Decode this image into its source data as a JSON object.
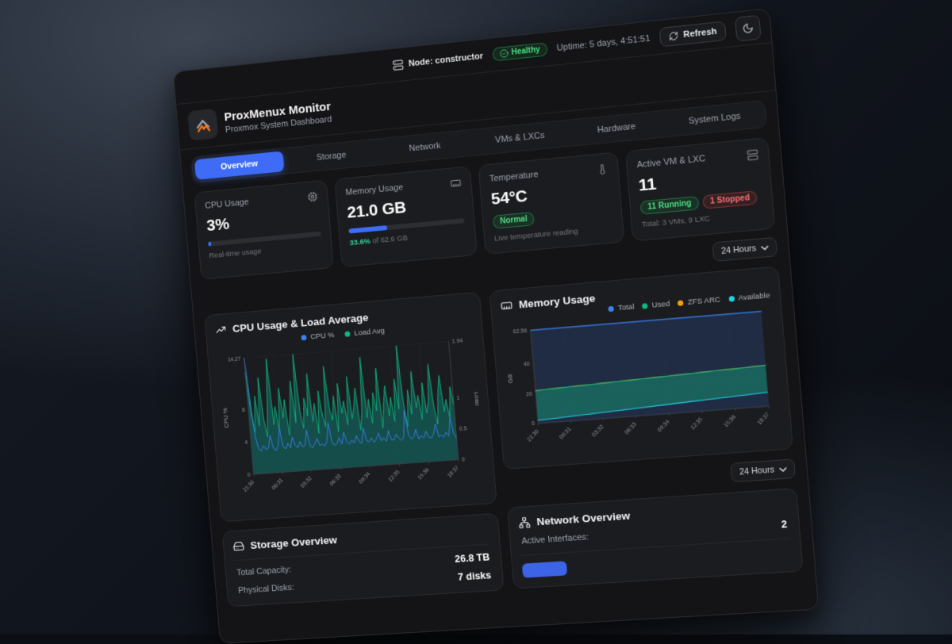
{
  "theme": {
    "accent": "#3e6cf6",
    "green": "#4ade80",
    "red": "#f87171",
    "chart_blue": "#3b82f6",
    "chart_green": "#10b981",
    "orange": "#f59e0b",
    "cyan": "#22d3ee"
  },
  "topbar": {
    "node_label": "Node: constructor",
    "health": "Healthy",
    "uptime": "Uptime: 5 days, 4:51:51",
    "refresh_label": "Refresh"
  },
  "header": {
    "title": "ProxMenux Monitor",
    "subtitle": "Proxmox System Dashboard"
  },
  "tabs": [
    {
      "label": "Overview",
      "active": true
    },
    {
      "label": "Storage",
      "active": false
    },
    {
      "label": "Network",
      "active": false
    },
    {
      "label": "VMs & LXCs",
      "active": false
    },
    {
      "label": "Hardware",
      "active": false
    },
    {
      "label": "System Logs",
      "active": false
    }
  ],
  "stats": {
    "cpu": {
      "title": "CPU Usage",
      "value": "3%",
      "percent": 3,
      "footnote": "Real-time usage"
    },
    "memory": {
      "title": "Memory Usage",
      "value": "21.0 GB",
      "percent": 33.6,
      "used_pct": "33.6%",
      "of_text": "of 62.6 GB"
    },
    "temperature": {
      "title": "Temperature",
      "value": "54°C",
      "badge": "Normal",
      "footnote": "Live temperature reading"
    },
    "vm": {
      "title": "Active VM & LXC",
      "value": "11",
      "running_badge": "11 Running",
      "stopped_badge": "1 Stopped",
      "footnote": "Total: 3 VMs, 9 LXC"
    }
  },
  "time_range": {
    "label": "24 Hours"
  },
  "time_range2": {
    "label": "24 Hours"
  },
  "storage": {
    "title": "Storage Overview",
    "rows": [
      {
        "label": "Total Capacity:",
        "value": "26.8 TB"
      },
      {
        "label": "Physical Disks:",
        "value": "7 disks"
      }
    ]
  },
  "network": {
    "title": "Network Overview",
    "rows": [
      {
        "label": "Active Interfaces:",
        "value": "2"
      }
    ],
    "badge_color": "#3d63e7"
  },
  "chart_data": [
    {
      "type": "line",
      "title": "CPU Usage & Load Average",
      "x_ticks": [
        "21:30",
        "00:31",
        "03:32",
        "06:33",
        "09:34",
        "12:35",
        "15:36",
        "18:37"
      ],
      "y_left": {
        "label": "CPU %",
        "ticks": [
          0,
          4,
          8,
          14.27
        ],
        "max": 14.27
      },
      "y_right": {
        "label": "Load",
        "ticks": [
          0,
          0.5,
          1,
          1.94
        ],
        "max": 1.94
      },
      "grid": true,
      "legend_position": "top",
      "legend": [
        {
          "label": "CPU %",
          "color": "#3b82f6"
        },
        {
          "label": "Load Avg",
          "color": "#10b981"
        }
      ],
      "series": [
        {
          "name": "Load Avg",
          "color": "#10b981",
          "axis": "right",
          "width": 1,
          "fill": "rgba(15,118,110,0.55)",
          "fill_to": "baseline",
          "values": [
            1.7,
            1.0,
            0.7,
            1.3,
            0.8,
            1.6,
            0.9,
            0.6,
            1.2,
            1.9,
            0.8,
            1.1,
            0.7,
            1.4,
            0.9,
            1.2,
            0.6,
            1.0,
            1.5,
            0.8,
            1.94,
            1.0,
            0.7,
            1.2,
            0.9,
            1.6,
            0.8,
            1.1,
            0.6,
            1.3,
            0.9,
            0.7,
            1.7,
            1.0,
            0.8,
            1.2,
            0.6,
            1.4,
            0.9,
            1.1,
            0.7,
            1.5,
            0.8,
            1.0,
            1.3,
            0.6,
            0.9,
            1.8,
            0.8,
            1.1,
            0.7,
            1.2,
            0.9,
            1.6,
            0.6,
            1.0,
            1.3,
            0.8,
            1.1,
            0.7,
            1.4,
            0.9,
            1.94,
            1.0,
            0.6,
            1.2,
            0.8,
            1.5,
            0.9,
            1.1,
            0.7,
            1.3,
            0.8,
            1.0,
            1.6,
            0.9,
            0.6,
            1.1,
            1.4,
            0.8,
            1.0,
            0.7,
            1.2,
            0.9
          ]
        },
        {
          "name": "CPU %",
          "color": "#3b82f6",
          "axis": "left",
          "width": 1,
          "values": [
            14.27,
            9,
            4.5,
            3,
            2.8,
            3.4,
            2.9,
            3.1,
            4.6,
            3,
            2.7,
            3.3,
            5.4,
            3.1,
            2.8,
            3.5,
            2.9,
            4.2,
            3.2,
            2.8,
            3.6,
            2.9,
            3.1,
            4.9,
            3,
            2.7,
            3.2,
            3.8,
            2.9,
            3.1,
            2.8,
            3.4,
            5.6,
            3.2,
            2.8,
            3,
            3.7,
            2.9,
            4.3,
            3.1,
            2.8,
            3.3,
            2.9,
            3.8,
            3,
            2.8,
            4.7,
            3.1,
            2.9,
            3.4,
            2.8,
            3.2,
            3.9,
            2.9,
            3.3,
            2.8,
            4.1,
            3,
            2.9,
            3.6,
            3.1,
            2.8,
            3.2,
            6.4,
            3.4,
            2.9,
            3.1,
            4,
            2.8,
            3.2,
            2.9,
            3.7,
            3,
            2.8,
            3.3,
            4.5,
            2.9,
            3.1,
            2.8,
            3.4,
            2.9,
            5.1,
            3.2,
            2.6
          ]
        }
      ]
    },
    {
      "type": "area",
      "title": "Memory Usage",
      "x_ticks": [
        "21:30",
        "00:31",
        "03:32",
        "06:33",
        "09:34",
        "12:35",
        "15:36",
        "18:37"
      ],
      "y": {
        "label": "GB",
        "ticks": [
          0,
          20,
          40,
          62.56
        ],
        "max": 62.56
      },
      "grid": true,
      "legend_position": "top-right",
      "legend": [
        {
          "label": "Total",
          "color": "#3b82f6"
        },
        {
          "label": "Used",
          "color": "#10b981"
        },
        {
          "label": "ZFS ARC",
          "color": "#f59e0b"
        },
        {
          "label": "Available",
          "color": "#22d3ee"
        }
      ],
      "series": [
        {
          "name": "Total",
          "color": "#3b82f6",
          "width": 1.4,
          "fill": "rgba(40,65,110,0.45)",
          "fill_to": "baseline",
          "values": [
            62.56,
            62.56,
            62.56,
            62.56,
            62.56,
            62.56,
            62.56,
            62.56,
            62.56,
            62.56
          ]
        },
        {
          "name": "ZFS ARC",
          "color": "#f59e0b",
          "width": 0.9,
          "values": [
            22,
            22.6,
            23.1,
            23.7,
            24.2,
            24.8,
            25.3,
            25.9,
            26.4,
            27
          ]
        },
        {
          "name": "Used",
          "color": "#10b981",
          "width": 1.2,
          "fill": "rgba(16,185,129,0.38)",
          "fill_to": "Available",
          "values": [
            22,
            22.6,
            23.1,
            23.7,
            24.2,
            24.8,
            25.3,
            25.9,
            26.4,
            27
          ]
        },
        {
          "name": "Available",
          "color": "#22d3ee",
          "width": 1.2,
          "values": [
            2,
            2.8,
            3.6,
            4.4,
            5.2,
            6,
            6.8,
            7.6,
            8.4,
            9.2
          ]
        }
      ]
    }
  ]
}
